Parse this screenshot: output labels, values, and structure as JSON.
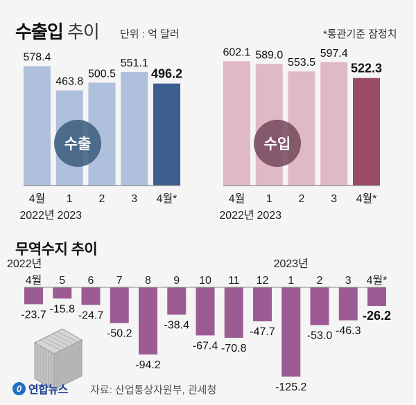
{
  "header": {
    "title_bold": "수출입",
    "title_light": " 추이",
    "unit": "단위 : 억 달러",
    "note": "*통관기준 잠정치"
  },
  "balance_section": {
    "title": "무역수지 추이"
  },
  "footer": {
    "logo_mark": "0",
    "logo_text": "연합뉴스",
    "source": "자료: 산업통상자원부, 관세청"
  },
  "colors": {
    "export_light": "#afc0dc",
    "export_dark": "#3c5f90",
    "export_badge": "#3f5f80",
    "import_light": "#dfb9c3",
    "import_dark": "#9a4b63",
    "import_badge": "#7a4a5e",
    "balance": "#9c5c93",
    "axis": "#888888"
  },
  "chart_data": [
    {
      "type": "bar",
      "title": "수출",
      "badge": "수출",
      "unit": "억 달러",
      "categories": [
        "4월\n2022년",
        "1\n2023",
        "2",
        "3",
        "4월*"
      ],
      "values": [
        578.4,
        463.8,
        500.5,
        551.1,
        496.2
      ],
      "value_labels": [
        "578.4",
        "463.8",
        "500.5",
        "551.1",
        "496.2"
      ],
      "highlight_last": true,
      "axis_truncated": true,
      "grid": false
    },
    {
      "type": "bar",
      "title": "수입",
      "badge": "수입",
      "unit": "억 달러",
      "categories": [
        "4월\n2022년",
        "1\n2023",
        "2",
        "3",
        "4월*"
      ],
      "values": [
        602.1,
        589.0,
        553.5,
        597.4,
        522.3
      ],
      "value_labels": [
        "602.1",
        "589.0",
        "553.5",
        "597.4",
        "522.3"
      ],
      "highlight_last": true,
      "axis_truncated": true,
      "grid": false
    },
    {
      "type": "bar",
      "title": "무역수지 추이",
      "unit": "억 달러",
      "year_labels": [
        {
          "label": "2022년",
          "at": 0
        },
        {
          "label": "2023년",
          "at": 9
        }
      ],
      "categories": [
        "4월",
        "5",
        "6",
        "7",
        "8",
        "9",
        "10",
        "11",
        "12",
        "1",
        "2",
        "3",
        "4월*"
      ],
      "values": [
        -23.7,
        -15.8,
        -24.7,
        -50.2,
        -94.2,
        -38.4,
        -67.4,
        -70.8,
        -47.7,
        -125.2,
        -53.0,
        -46.3,
        -26.2
      ],
      "value_labels": [
        "-23.7",
        "-15.8",
        "-24.7",
        "-50.2",
        "-94.2",
        "-38.4",
        "-67.4",
        "-70.8",
        "-47.7",
        "-125.2",
        "-53.0",
        "-46.3",
        "-26.2"
      ],
      "highlight_last": true,
      "ylim": [
        -130,
        0
      ],
      "grid": false
    }
  ]
}
